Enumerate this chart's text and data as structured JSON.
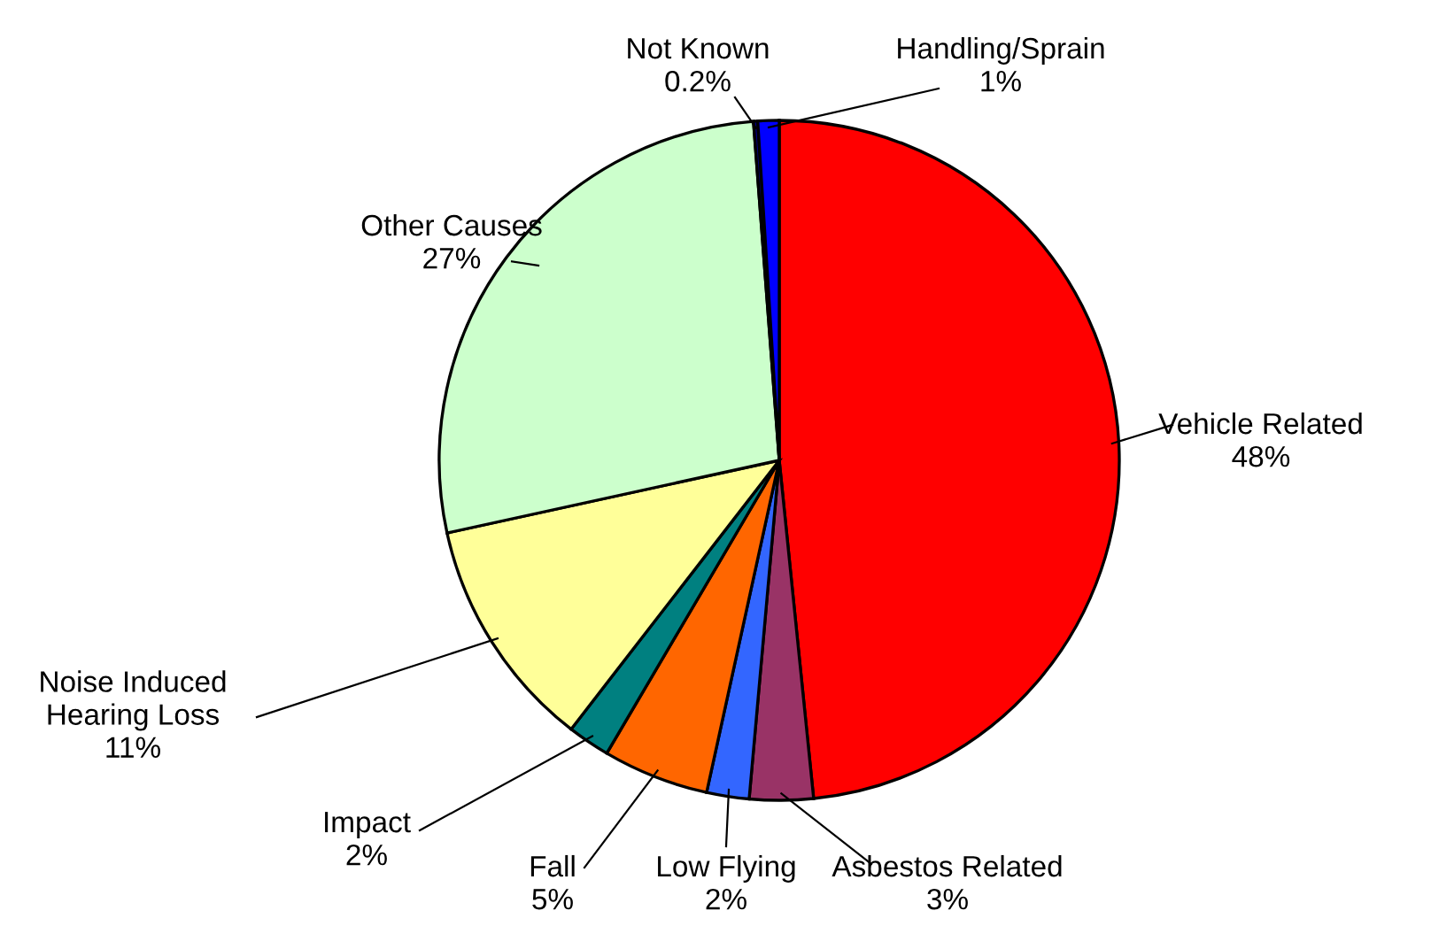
{
  "chart_data": {
    "type": "pie",
    "categories": [
      "Vehicle Related",
      "Asbestos Related",
      "Low Flying",
      "Fall",
      "Impact",
      "Noise Induced\nHearing Loss",
      "Other Causes",
      "Not Known",
      "Handling/Sprain"
    ],
    "values": [
      48,
      3,
      2,
      5,
      2,
      11,
      27,
      0.2,
      1
    ],
    "value_labels": [
      "48%",
      "3%",
      "2%",
      "5%",
      "2%",
      "11%",
      "27%",
      "0.2%",
      "1%"
    ],
    "colors": [
      "#ff0000",
      "#993366",
      "#3366ff",
      "#ff6600",
      "#008080",
      "#ffff99",
      "#ccffcc",
      "#000080",
      "#0000ff"
    ]
  }
}
